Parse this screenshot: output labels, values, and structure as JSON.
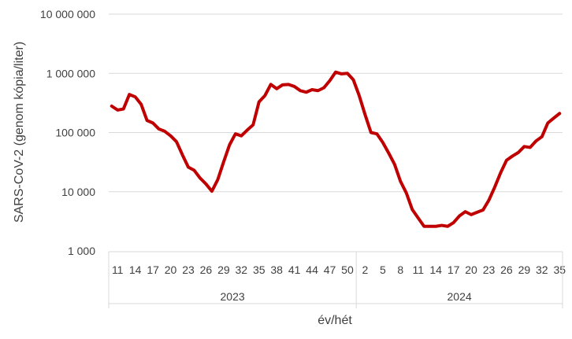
{
  "chart_data": {
    "type": "line",
    "ylabel": "SARS-CoV-2 (genom kópia/liter)",
    "xlabel": "év/hét",
    "y_scale": "log",
    "ylim": [
      1000,
      10000000
    ],
    "grid": true,
    "legend": "none",
    "line_color": "#C00000",
    "y_ticks": [
      {
        "value": 1000,
        "label": "1 000"
      },
      {
        "value": 10000,
        "label": "10 000"
      },
      {
        "value": 100000,
        "label": "100 000"
      },
      {
        "value": 1000000,
        "label": "1 000 000"
      },
      {
        "value": 10000000,
        "label": "10 000 000"
      }
    ],
    "groups": [
      {
        "year": "2023",
        "weeks": [
          10,
          11,
          12,
          13,
          14,
          15,
          16,
          17,
          18,
          19,
          20,
          21,
          22,
          23,
          24,
          25,
          26,
          27,
          28,
          29,
          30,
          31,
          32,
          33,
          34,
          35,
          36,
          37,
          38,
          39,
          40,
          41,
          42,
          43,
          44,
          45,
          46,
          47,
          48,
          49,
          50,
          51
        ]
      },
      {
        "year": "2024",
        "weeks": [
          1,
          2,
          3,
          4,
          5,
          6,
          7,
          8,
          9,
          10,
          11,
          12,
          13,
          14,
          15,
          16,
          17,
          18,
          19,
          20,
          21,
          22,
          23,
          24,
          25,
          26,
          27,
          28,
          29,
          30,
          31,
          32,
          33,
          34,
          35
        ]
      }
    ],
    "tick_labels": {
      "2023": [
        "11",
        "14",
        "17",
        "20",
        "23",
        "26",
        "29",
        "32",
        "35",
        "38",
        "41",
        "44",
        "47",
        "50"
      ],
      "2024": [
        "2",
        "5",
        "8",
        "11",
        "14",
        "17",
        "20",
        "23",
        "26",
        "29",
        "32",
        "35"
      ]
    },
    "series": [
      {
        "values": [
          280000,
          240000,
          250000,
          440000,
          400000,
          300000,
          160000,
          145000,
          115000,
          105000,
          88000,
          70000,
          42000,
          26000,
          23000,
          17000,
          13500,
          10200,
          16000,
          32000,
          62000,
          95000,
          88000,
          110000,
          135000,
          330000,
          420000,
          650000,
          550000,
          640000,
          650000,
          600000,
          510000,
          480000,
          530000,
          510000,
          570000,
          750000,
          1050000,
          980000,
          1000000,
          780000,
          420000,
          200000,
          100000,
          95000,
          68000,
          45000,
          29000,
          15000,
          9500,
          5000,
          3600,
          2600,
          2600,
          2600,
          2700,
          2600,
          3000,
          3900,
          4600,
          4100,
          4500,
          4900,
          7200,
          12000,
          21000,
          34000,
          40000,
          46000,
          58000,
          56000,
          72000,
          85000,
          145000,
          175000,
          210000
        ]
      }
    ]
  }
}
